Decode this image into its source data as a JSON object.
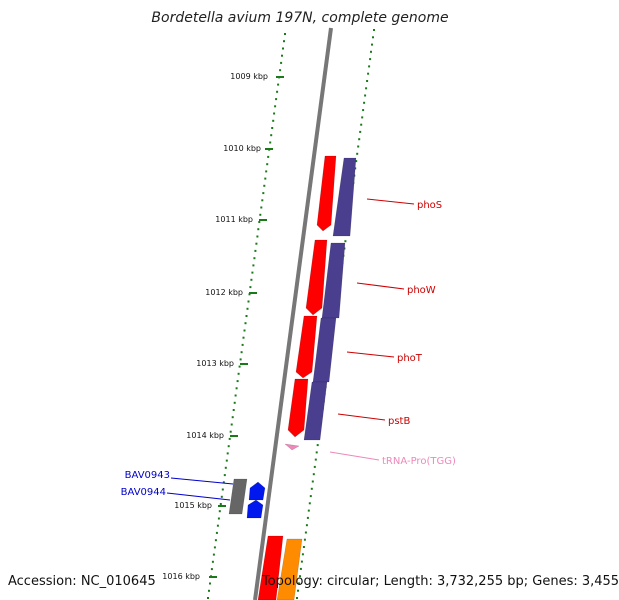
{
  "title": "Bordetella avium 197N, complete genome",
  "accession_text": "Accession: NC_010645",
  "topology_text": "Topology: circular; Length: 3,732,255 bp; Genes: 3,455",
  "scale_labels": [
    "1009 kbp",
    "1010 kbp",
    "1011 kbp",
    "1012 kbp",
    "1013 kbp",
    "1014 kbp",
    "1015 kbp",
    "1016 kbp"
  ],
  "genes": [
    {
      "label": "phoS",
      "color": "#cc0000"
    },
    {
      "label": "phoW",
      "color": "#cc0000"
    },
    {
      "label": "phoT",
      "color": "#cc0000"
    },
    {
      "label": "pstB",
      "color": "#cc0000"
    },
    {
      "label": "tRNA-Pro(TGG)",
      "color": "#ee88bb"
    },
    {
      "label": "BAV0943",
      "color": "#0000cc"
    },
    {
      "label": "BAV0944",
      "color": "#0000cc"
    }
  ],
  "colors": {
    "backbone": "#777777",
    "tick": "#1a7a1a",
    "cds_red": "#ff0000",
    "cds_purple": "#4a3f8f",
    "cds_blue": "#0018ee",
    "cds_gray": "#666666",
    "cds_orange": "#ff8c00",
    "trna": "#ee88bb"
  }
}
